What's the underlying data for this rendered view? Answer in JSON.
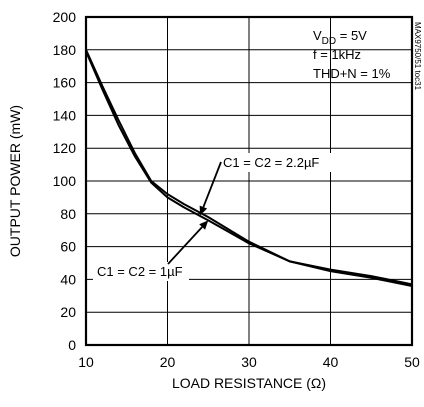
{
  "chart_data": {
    "type": "line",
    "xlabel": "LOAD RESISTANCE (Ω)",
    "ylabel": "OUTPUT POWER (mW)",
    "xlim": [
      10,
      50
    ],
    "ylim": [
      0,
      200
    ],
    "x_ticks": [
      10,
      20,
      30,
      40,
      50
    ],
    "y_ticks": [
      0,
      20,
      40,
      60,
      80,
      100,
      120,
      140,
      160,
      180,
      200
    ],
    "grid": true,
    "conditions": {
      "vdd_main": "V",
      "vdd_sub": "DD",
      "vdd_value": " = 5V",
      "freq": "f = 1kHz",
      "thd": "THD+N = 1%"
    },
    "figure_id": "MAX9750/51 toc31",
    "series": [
      {
        "name": "C1 = C2 = 2.2µF",
        "x": [
          10,
          12,
          14,
          16,
          18,
          20,
          22,
          25,
          30,
          35,
          40,
          45,
          50
        ],
        "y": [
          180,
          158,
          137,
          117,
          100,
          92,
          86,
          78,
          63,
          51,
          46,
          42,
          37
        ]
      },
      {
        "name": "C1 = C2 = 1µF",
        "x": [
          10,
          12,
          14,
          16,
          18,
          20,
          22,
          25,
          30,
          35,
          40,
          45,
          50
        ],
        "y": [
          179,
          156,
          134,
          115,
          99,
          90,
          84,
          76,
          62,
          51,
          45,
          41,
          36
        ]
      }
    ],
    "annotations": [
      {
        "text": "C1 = C2 = 2.2µF",
        "points_to": [
          24,
          79
        ]
      },
      {
        "text": "C1 = C2 = 1µF",
        "points_to": [
          25,
          76
        ]
      }
    ]
  }
}
